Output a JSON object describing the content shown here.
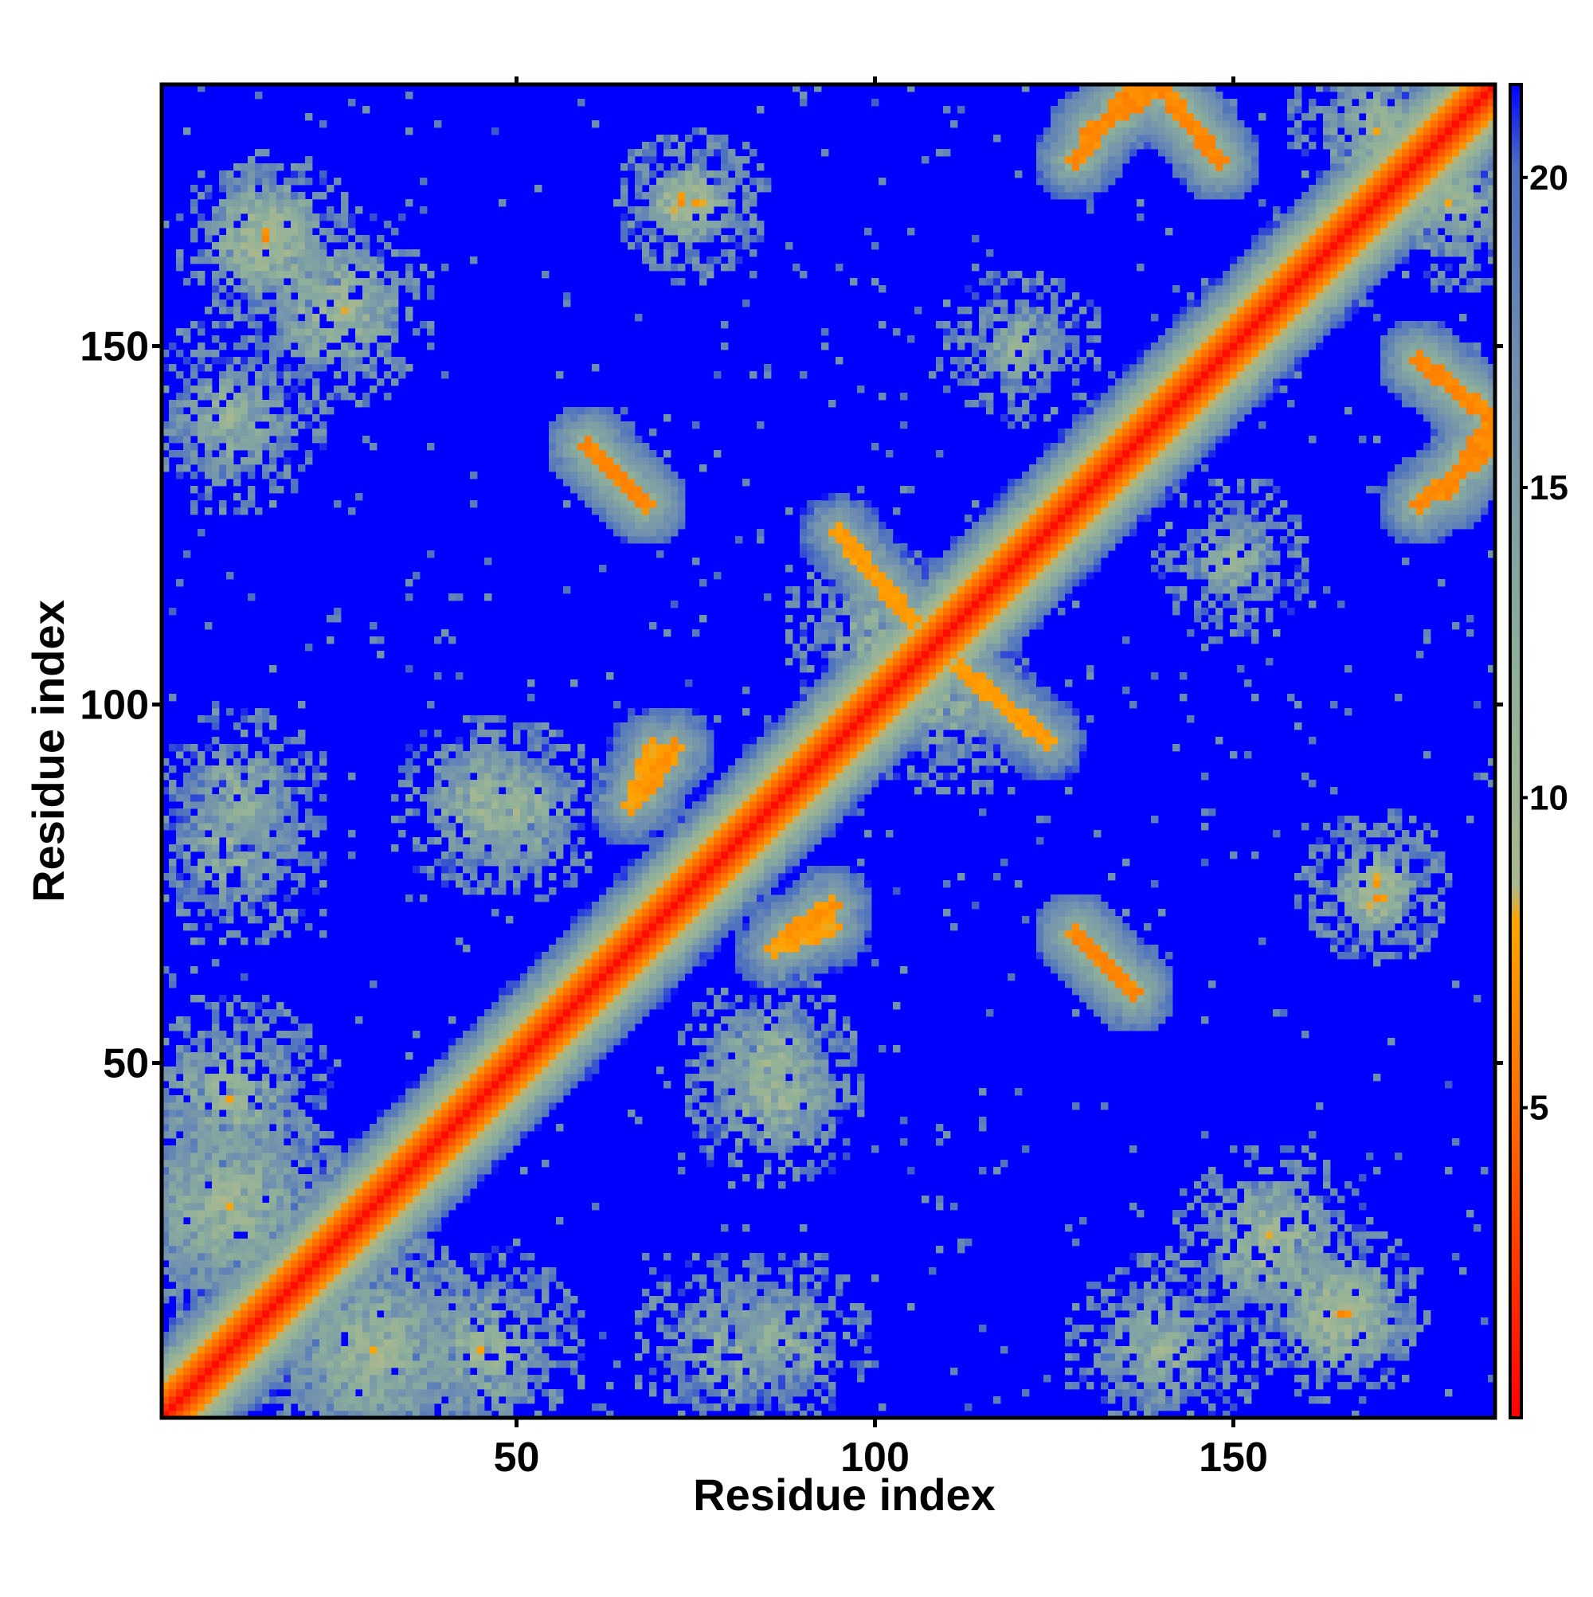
{
  "chart_data": {
    "type": "heatmap",
    "title": "",
    "xlabel": "Residue index",
    "ylabel": "Residue index",
    "xlim": [
      1,
      186
    ],
    "ylim": [
      1,
      186
    ],
    "n_residues": 186,
    "x_ticks": [
      50,
      100,
      150
    ],
    "y_ticks": [
      50,
      100,
      150
    ],
    "colorbar": {
      "ticks": [
        5,
        10,
        15,
        20
      ],
      "range": [
        0,
        21.5
      ],
      "stops": [
        {
          "value": 0,
          "color": "#ff0000"
        },
        {
          "value": 4,
          "color": "#ff5a00"
        },
        {
          "value": 8,
          "color": "#ffa500"
        },
        {
          "value": 8.6,
          "color": "#a8b890"
        },
        {
          "value": 12,
          "color": "#8fb09a"
        },
        {
          "value": 17,
          "color": "#6f8fb0"
        },
        {
          "value": 20.2,
          "color": "#4a6fc0"
        },
        {
          "value": 21.5,
          "color": "#0000ff"
        }
      ]
    },
    "diagonal_band": {
      "halfwidth": 6,
      "peak": 0.5
    },
    "contact_segments": [
      {
        "i0": 60,
        "j0": 136,
        "i1": 68,
        "j1": 128,
        "dist": 6
      },
      {
        "i0": 128,
        "j0": 68,
        "i1": 136,
        "j1": 60,
        "dist": 6
      },
      {
        "i0": 130,
        "j0": 180,
        "i1": 140,
        "j1": 186,
        "dist": 6
      },
      {
        "i0": 140,
        "j0": 186,
        "i1": 148,
        "j1": 176,
        "dist": 6
      },
      {
        "i0": 176,
        "j0": 148,
        "i1": 186,
        "j1": 140,
        "dist": 6
      },
      {
        "i0": 176,
        "j0": 128,
        "i1": 186,
        "j1": 136,
        "dist": 6
      },
      {
        "i0": 88,
        "j0": 68,
        "i1": 94,
        "j1": 72,
        "dist": 6.5
      },
      {
        "i0": 66,
        "j0": 86,
        "i1": 69,
        "j1": 94,
        "dist": 7
      },
      {
        "i0": 95,
        "j0": 124,
        "i1": 105,
        "j1": 112,
        "dist": 7
      }
    ],
    "contact_clusters": [
      {
        "i": 15,
        "j": 165,
        "r": 6,
        "dist": 8
      },
      {
        "i": 73,
        "j": 170,
        "r": 5,
        "dist": 8
      },
      {
        "i": 45,
        "j": 86,
        "r": 8,
        "dist": 9.5
      },
      {
        "i": 12,
        "j": 88,
        "r": 7,
        "dist": 10
      },
      {
        "i": 85,
        "j": 50,
        "r": 8,
        "dist": 9.5
      },
      {
        "i": 155,
        "j": 25,
        "r": 9,
        "dist": 9
      },
      {
        "i": 165,
        "j": 15,
        "r": 8,
        "dist": 8
      },
      {
        "i": 170,
        "j": 75,
        "r": 6,
        "dist": 9
      },
      {
        "i": 80,
        "j": 10,
        "r": 9,
        "dist": 11
      },
      {
        "i": 10,
        "j": 45,
        "r": 10,
        "dist": 10
      },
      {
        "i": 10,
        "j": 140,
        "r": 9,
        "dist": 10.5
      },
      {
        "i": 110,
        "j": 100,
        "r": 8,
        "dist": 11
      },
      {
        "i": 120,
        "j": 150,
        "r": 7,
        "dist": 11
      },
      {
        "i": 30,
        "j": 10,
        "r": 12,
        "dist": 10
      },
      {
        "i": 10,
        "j": 30,
        "r": 12,
        "dist": 10
      },
      {
        "i": 180,
        "j": 170,
        "r": 8,
        "dist": 10
      }
    ]
  }
}
